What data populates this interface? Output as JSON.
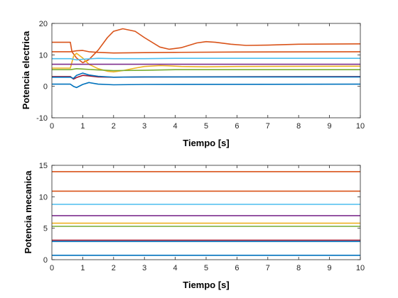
{
  "chart_data": [
    {
      "type": "line",
      "title": "",
      "xlabel": "Tiempo [s]",
      "ylabel": "Potencia electrica",
      "xlim": [
        0,
        10
      ],
      "ylim": [
        -10,
        20
      ],
      "xticks": [
        0,
        1,
        2,
        3,
        4,
        5,
        6,
        7,
        8,
        9,
        10
      ],
      "xtick_labels": [
        "0",
        "1",
        "2",
        "3",
        "4",
        "5",
        "6",
        "7",
        "8",
        "9",
        "10"
      ],
      "yticks": [
        -10,
        0,
        10,
        20
      ],
      "ytick_labels": [
        "-10",
        "0",
        "10",
        "20"
      ],
      "grid": false,
      "series": [
        {
          "color": "#0072BD",
          "x": [
            0,
            0.6,
            0.7,
            0.8,
            1.0,
            1.2,
            1.5,
            2.0,
            3.0,
            10
          ],
          "y": [
            0.7,
            0.7,
            0,
            -0.4,
            0.6,
            1.2,
            0.7,
            0.5,
            0.6,
            0.7
          ]
        },
        {
          "color": "#D95319",
          "x": [
            0,
            0.6,
            0.65,
            0.8,
            1.0,
            1.2,
            1.5,
            1.8,
            2.0,
            2.3,
            2.7,
            3.0,
            3.5,
            3.8,
            4.2,
            4.7,
            5.0,
            5.3,
            5.8,
            6.3,
            7.0,
            8.0,
            10
          ],
          "y": [
            14,
            14,
            11,
            9,
            7.5,
            8.5,
            11.5,
            15.5,
            17.5,
            18.3,
            17.5,
            15.5,
            12.5,
            11.8,
            12.3,
            13.8,
            14.2,
            14,
            13.4,
            13,
            13.1,
            13.4,
            13.5
          ]
        },
        {
          "color": "#EDB120",
          "x": [
            0,
            0.6,
            0.7,
            0.8,
            1.0,
            1.2,
            1.5,
            1.8,
            2.0,
            2.3,
            2.7,
            3.0,
            3.5,
            3.8,
            4.2,
            5.0,
            6.0,
            10
          ],
          "y": [
            5.8,
            5.8,
            9.5,
            10.5,
            9,
            7,
            5.6,
            4.8,
            4.6,
            5,
            5.8,
            6.3,
            6.6,
            6.5,
            6.3,
            6.2,
            6.3,
            6.4
          ]
        },
        {
          "color": "#7E2F8E",
          "x": [
            0,
            0.6,
            10
          ],
          "y": [
            7,
            7,
            7
          ]
        },
        {
          "color": "#77AC30",
          "x": [
            0,
            0.6,
            0.8,
            1.0,
            1.5,
            2.0,
            3.0,
            4.0,
            6.0,
            10
          ],
          "y": [
            5.3,
            5.3,
            5.6,
            5.5,
            5.2,
            5,
            5.1,
            5.3,
            5.3,
            5.3
          ]
        },
        {
          "color": "#4DBEEE",
          "x": [
            0,
            0.6,
            0.8,
            1.0,
            1.5,
            2.0,
            3.0,
            4.0,
            10
          ],
          "y": [
            8.8,
            8.8,
            8.4,
            8.6,
            8.9,
            8.8,
            8.8,
            8.9,
            8.9
          ]
        },
        {
          "color": "#A2142F",
          "x": [
            0,
            0.6,
            0.7,
            0.8,
            1.0,
            1.2,
            1.5,
            2.0,
            3.0,
            10
          ],
          "y": [
            3.1,
            3.1,
            2.3,
            2.8,
            3.5,
            3.3,
            3.0,
            2.9,
            3.0,
            3.1
          ]
        },
        {
          "color": "#0072BD",
          "x": [
            0,
            0.6,
            0.7,
            0.8,
            1.0,
            1.2,
            1.5,
            2.0,
            3.0,
            10
          ],
          "y": [
            2.9,
            2.9,
            2.5,
            3.5,
            4.2,
            3.6,
            3.2,
            2.9,
            3.0,
            3.0
          ]
        },
        {
          "color": "#D95319",
          "x": [
            0,
            0.6,
            0.8,
            1.0,
            1.2,
            1.5,
            2.0,
            3.0,
            4.0,
            6.0,
            10
          ],
          "y": [
            11,
            11,
            11.3,
            11.4,
            11,
            10.8,
            10.6,
            10.7,
            10.8,
            10.9,
            11
          ]
        }
      ]
    },
    {
      "type": "line",
      "title": "",
      "xlabel": "Tiempo [s]",
      "ylabel": "Potencia mecanica",
      "xlim": [
        0,
        10
      ],
      "ylim": [
        0,
        15
      ],
      "xticks": [
        0,
        1,
        2,
        3,
        4,
        5,
        6,
        7,
        8,
        9,
        10
      ],
      "xtick_labels": [
        "0",
        "1",
        "2",
        "3",
        "4",
        "5",
        "6",
        "7",
        "8",
        "9",
        "10"
      ],
      "yticks": [
        0,
        5,
        10,
        15
      ],
      "ytick_labels": [
        "0",
        "5",
        "10",
        "15"
      ],
      "grid": false,
      "series": [
        {
          "color": "#0072BD",
          "x": [
            0,
            10
          ],
          "y": [
            0.7,
            0.7
          ]
        },
        {
          "color": "#D95319",
          "x": [
            0,
            10
          ],
          "y": [
            14,
            14
          ]
        },
        {
          "color": "#EDB120",
          "x": [
            0,
            10
          ],
          "y": [
            5.8,
            5.8
          ]
        },
        {
          "color": "#7E2F8E",
          "x": [
            0,
            10
          ],
          "y": [
            7,
            7
          ]
        },
        {
          "color": "#77AC30",
          "x": [
            0,
            10
          ],
          "y": [
            5.3,
            5.3
          ]
        },
        {
          "color": "#4DBEEE",
          "x": [
            0,
            10
          ],
          "y": [
            8.8,
            8.8
          ]
        },
        {
          "color": "#A2142F",
          "x": [
            0,
            10
          ],
          "y": [
            3.1,
            3.1
          ]
        },
        {
          "color": "#0072BD",
          "x": [
            0,
            10
          ],
          "y": [
            2.9,
            2.9
          ]
        },
        {
          "color": "#D95319",
          "x": [
            0,
            10
          ],
          "y": [
            10.9,
            10.9
          ]
        }
      ]
    }
  ]
}
